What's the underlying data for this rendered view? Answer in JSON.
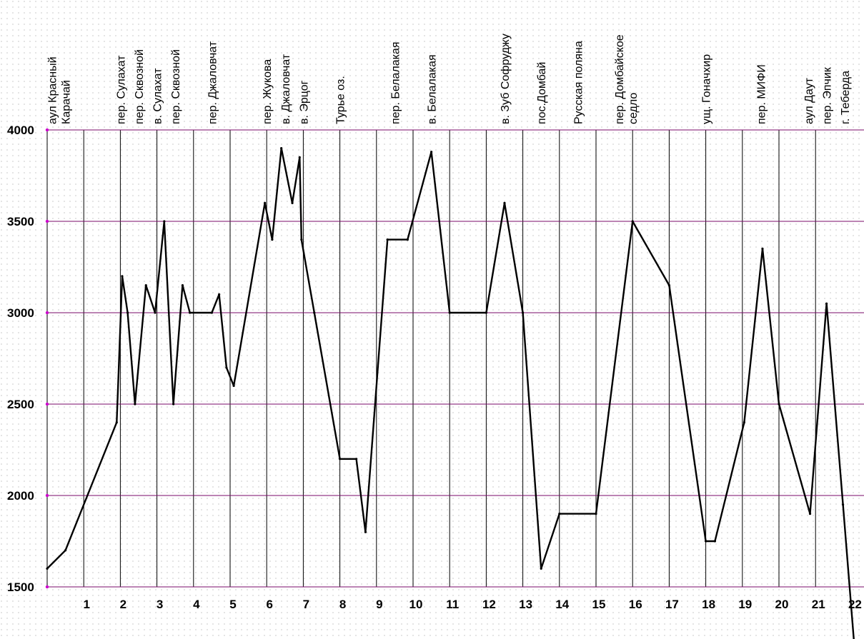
{
  "chart_data": {
    "type": "line",
    "title": "",
    "xlabel": "",
    "ylabel": "",
    "ylim": [
      1500,
      4000
    ],
    "xlim": [
      0,
      22
    ],
    "y_ticks": [
      1500,
      2000,
      2500,
      3000,
      3500,
      4000
    ],
    "x_ticks": [
      1,
      2,
      3,
      4,
      5,
      6,
      7,
      8,
      9,
      10,
      11,
      12,
      13,
      14,
      15,
      16,
      17,
      18,
      19,
      20,
      21,
      22
    ],
    "grid": true,
    "colors": {
      "line": "#000000",
      "hgrid": "#7a0a6a",
      "vgrid": "#000000",
      "tick_dot": "#cc00cc"
    },
    "place_labels": [
      {
        "x": 0.5,
        "lines": [
          "аул Красный",
          "Карачай"
        ]
      },
      {
        "x": 2.0,
        "lines": [
          "пер. Сулахат"
        ]
      },
      {
        "x": 2.5,
        "lines": [
          "пер. Сквозной"
        ]
      },
      {
        "x": 3.0,
        "lines": [
          "в. Сулахат"
        ]
      },
      {
        "x": 3.5,
        "lines": [
          "пер. Сквозной"
        ]
      },
      {
        "x": 4.5,
        "lines": [
          "пер. Джаловчат"
        ]
      },
      {
        "x": 6.0,
        "lines": [
          "пер. Жукова"
        ]
      },
      {
        "x": 6.5,
        "lines": [
          "в. Джаловчат"
        ]
      },
      {
        "x": 7.0,
        "lines": [
          "в. Эрцог"
        ]
      },
      {
        "x": 8.0,
        "lines": [
          "Турье оз."
        ]
      },
      {
        "x": 9.5,
        "lines": [
          "пер. Белалакая"
        ]
      },
      {
        "x": 10.5,
        "lines": [
          "в. Белалакая"
        ]
      },
      {
        "x": 12.5,
        "lines": [
          "в. Зуб Софруджу"
        ]
      },
      {
        "x": 13.5,
        "lines": [
          "пос.Домбай"
        ]
      },
      {
        "x": 14.5,
        "lines": [
          "Русская поляна"
        ]
      },
      {
        "x": 16.0,
        "lines": [
          "пер. Домбайское",
          "седло"
        ]
      },
      {
        "x": 18.0,
        "lines": [
          "ущ. Гоначхир"
        ]
      },
      {
        "x": 19.5,
        "lines": [
          "пер. МИФИ"
        ]
      },
      {
        "x": 20.8,
        "lines": [
          "аул Даут"
        ]
      },
      {
        "x": 21.3,
        "lines": [
          "пер. Эпчик"
        ]
      },
      {
        "x": 21.8,
        "lines": [
          "г. Теберда"
        ]
      }
    ],
    "series": [
      {
        "points": [
          [
            0,
            1600
          ],
          [
            0.5,
            1700
          ],
          [
            1.9,
            2400
          ],
          [
            2.05,
            3200
          ],
          [
            2.2,
            3000
          ],
          [
            2.4,
            2500
          ],
          [
            2.7,
            3150
          ],
          [
            2.95,
            3000
          ],
          [
            3.2,
            3500
          ],
          [
            3.45,
            2500
          ],
          [
            3.7,
            3150
          ],
          [
            3.9,
            3000
          ],
          [
            4.5,
            3000
          ],
          [
            4.7,
            3100
          ],
          [
            4.9,
            2700
          ],
          [
            5.1,
            2600
          ],
          [
            5.95,
            3600
          ],
          [
            6.15,
            3400
          ],
          [
            6.4,
            3900
          ],
          [
            6.7,
            3600
          ],
          [
            6.9,
            3850
          ],
          [
            6.95,
            3400
          ],
          [
            7.3,
            3000
          ],
          [
            8.0,
            2200
          ],
          [
            8.45,
            2200
          ],
          [
            8.7,
            1800
          ],
          [
            9.3,
            3400
          ],
          [
            9.85,
            3400
          ],
          [
            10.5,
            3880
          ],
          [
            11.0,
            3000
          ],
          [
            12.0,
            3000
          ],
          [
            12.5,
            3600
          ],
          [
            13.0,
            3000
          ],
          [
            13.5,
            1600
          ],
          [
            14.0,
            1900
          ],
          [
            15.0,
            1900
          ],
          [
            16.0,
            3500
          ],
          [
            17.0,
            3150
          ],
          [
            18.0,
            1750
          ],
          [
            18.25,
            1750
          ],
          [
            19.05,
            2400
          ],
          [
            19.55,
            3350
          ],
          [
            20.0,
            2500
          ],
          [
            20.85,
            1900
          ],
          [
            21.3,
            3050
          ],
          [
            21.75,
            1950
          ],
          [
            22.05,
            1200
          ]
        ]
      }
    ]
  }
}
